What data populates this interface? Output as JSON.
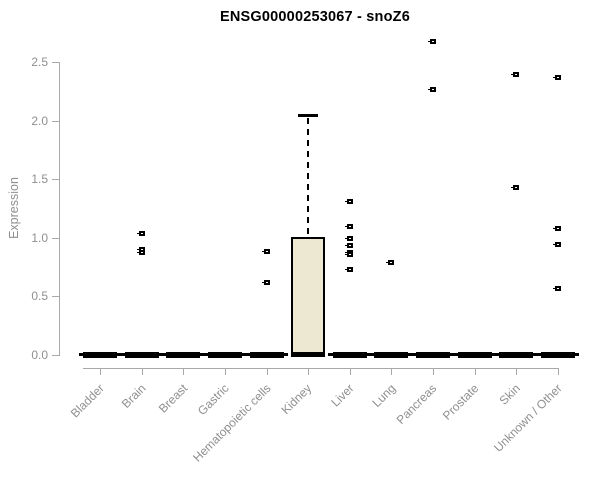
{
  "chart_data": {
    "type": "box",
    "title": "ENSG00000253067 - snoZ6",
    "ylabel": "Expression",
    "xlabel": "",
    "y_ticks": [
      0.0,
      0.5,
      1.0,
      1.5,
      2.0,
      2.5
    ],
    "ylim": [
      0.0,
      2.72
    ],
    "grid": false,
    "legend": false,
    "box_fill_color": "#ede8d1",
    "box_line_color": "#000000",
    "axis_color": "#a9a9a9",
    "axis_text_color": "#8f8f8f",
    "categories": [
      "Bladder",
      "Brain",
      "Breast",
      "Gastric",
      "Hematopoietic cells",
      "Kidney",
      "Liver",
      "Lung",
      "Pancreas",
      "Prostate",
      "Skin",
      "Unknown / Other"
    ],
    "boxes": [
      {
        "category": "Bladder",
        "whisker_low": 0,
        "q1": 0,
        "median": 0,
        "q3": 0,
        "whisker_high": 0,
        "outliers": []
      },
      {
        "category": "Brain",
        "whisker_low": 0,
        "q1": 0,
        "median": 0,
        "q3": 0,
        "whisker_high": 0,
        "outliers": [
          1.03,
          0.89,
          0.87
        ]
      },
      {
        "category": "Breast",
        "whisker_low": 0,
        "q1": 0,
        "median": 0,
        "q3": 0,
        "whisker_high": 0,
        "outliers": []
      },
      {
        "category": "Gastric",
        "whisker_low": 0,
        "q1": 0,
        "median": 0,
        "q3": 0,
        "whisker_high": 0,
        "outliers": []
      },
      {
        "category": "Hematopoietic cells",
        "whisker_low": 0,
        "q1": 0,
        "median": 0,
        "q3": 0,
        "whisker_high": 0,
        "outliers": [
          0.88,
          0.61
        ]
      },
      {
        "category": "Kidney",
        "whisker_low": 0,
        "q1": 0,
        "median": 0,
        "q3": 1.0,
        "whisker_high": 2.05,
        "outliers": []
      },
      {
        "category": "Liver",
        "whisker_low": 0,
        "q1": 0,
        "median": 0,
        "q3": 0,
        "whisker_high": 0,
        "outliers": [
          1.3,
          1.09,
          0.99,
          0.93,
          0.87,
          0.85,
          0.72
        ]
      },
      {
        "category": "Lung",
        "whisker_low": 0,
        "q1": 0,
        "median": 0,
        "q3": 0,
        "whisker_high": 0,
        "outliers": [
          0.78
        ]
      },
      {
        "category": "Pancreas",
        "whisker_low": 0,
        "q1": 0,
        "median": 0,
        "q3": 0,
        "whisker_high": 0,
        "outliers": [
          2.67,
          2.26
        ]
      },
      {
        "category": "Prostate",
        "whisker_low": 0,
        "q1": 0,
        "median": 0,
        "q3": 0,
        "whisker_high": 0,
        "outliers": []
      },
      {
        "category": "Skin",
        "whisker_low": 0,
        "q1": 0,
        "median": 0,
        "q3": 0,
        "whisker_high": 0,
        "outliers": [
          2.39,
          1.42
        ]
      },
      {
        "category": "Unknown / Other",
        "whisker_low": 0,
        "q1": 0,
        "median": 0,
        "q3": 0,
        "whisker_high": 0,
        "outliers": [
          2.36,
          1.07,
          0.94,
          0.56
        ]
      }
    ]
  }
}
